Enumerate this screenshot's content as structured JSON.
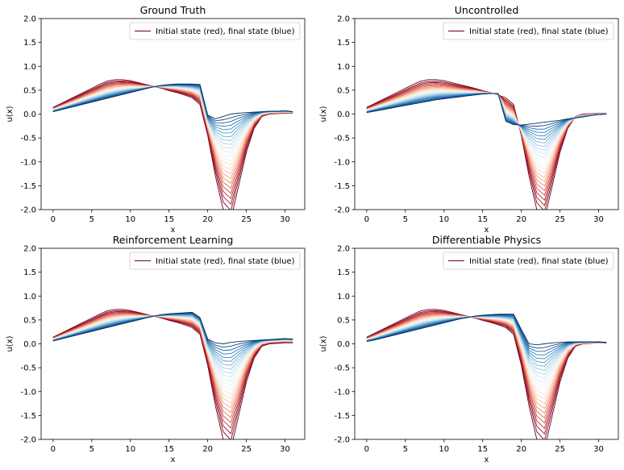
{
  "figure": {
    "colors": {
      "initial": "#67001f",
      "final": "#053061",
      "axes": "#000000",
      "legend_border": "#cccccc"
    }
  },
  "chart_data": [
    {
      "type": "line",
      "title": "Ground Truth",
      "xlabel": "x",
      "ylabel": "u(x)",
      "xlim": [
        -1.55,
        32.55
      ],
      "ylim": [
        -2.0,
        2.0
      ],
      "xticks": [
        0,
        5,
        10,
        15,
        20,
        25,
        30
      ],
      "yticks": [
        -2.0,
        -1.5,
        -1.0,
        -0.5,
        0.0,
        0.5,
        1.0,
        1.5,
        2.0
      ],
      "legend": {
        "label": "Initial state (red), final state (blue)",
        "loc": "upper right"
      },
      "grid": false,
      "num_states": 24,
      "colormap": "RdBu",
      "x": [
        0,
        1,
        2,
        3,
        4,
        5,
        6,
        7,
        8,
        9,
        10,
        11,
        12,
        13,
        14,
        15,
        16,
        17,
        18,
        19,
        20,
        21,
        22,
        23,
        24,
        25,
        26,
        27,
        28,
        29,
        30,
        31
      ],
      "series": [
        {
          "state": "initial",
          "values": [
            0.14,
            0.22,
            0.3,
            0.38,
            0.46,
            0.54,
            0.62,
            0.69,
            0.72,
            0.72,
            0.7,
            0.66,
            0.62,
            0.58,
            0.54,
            0.49,
            0.45,
            0.4,
            0.34,
            0.2,
            -0.45,
            -1.3,
            -2.0,
            -2.2,
            -1.5,
            -0.8,
            -0.3,
            -0.05,
            0.0,
            0.01,
            0.02,
            0.02
          ]
        },
        {
          "state": "final",
          "values": [
            0.05,
            0.09,
            0.13,
            0.17,
            0.21,
            0.25,
            0.29,
            0.33,
            0.37,
            0.41,
            0.45,
            0.49,
            0.53,
            0.57,
            0.6,
            0.62,
            0.63,
            0.63,
            0.63,
            0.62,
            -0.02,
            -0.1,
            -0.05,
            0.0,
            0.02,
            0.03,
            0.04,
            0.05,
            0.06,
            0.06,
            0.07,
            0.05
          ]
        }
      ]
    },
    {
      "type": "line",
      "title": "Uncontrolled",
      "xlabel": "x",
      "ylabel": "u(x)",
      "xlim": [
        -1.55,
        32.55
      ],
      "ylim": [
        -2.0,
        2.0
      ],
      "xticks": [
        0,
        5,
        10,
        15,
        20,
        25,
        30
      ],
      "yticks": [
        -2.0,
        -1.5,
        -1.0,
        -0.5,
        0.0,
        0.5,
        1.0,
        1.5,
        2.0
      ],
      "legend": {
        "label": "Initial state (red), final state (blue)",
        "loc": "upper right"
      },
      "grid": false,
      "num_states": 24,
      "colormap": "RdBu",
      "x": [
        0,
        1,
        2,
        3,
        4,
        5,
        6,
        7,
        8,
        9,
        10,
        11,
        12,
        13,
        14,
        15,
        16,
        17,
        18,
        19,
        20,
        21,
        22,
        23,
        24,
        25,
        26,
        27,
        28,
        29,
        30,
        31
      ],
      "series": [
        {
          "state": "initial",
          "values": [
            0.14,
            0.22,
            0.3,
            0.38,
            0.46,
            0.54,
            0.62,
            0.69,
            0.72,
            0.72,
            0.7,
            0.66,
            0.62,
            0.58,
            0.54,
            0.49,
            0.45,
            0.4,
            0.34,
            0.2,
            -0.45,
            -1.3,
            -2.0,
            -2.2,
            -1.5,
            -0.8,
            -0.3,
            -0.05,
            0.0,
            0.01,
            0.02,
            0.02
          ]
        },
        {
          "state": "final",
          "values": [
            0.03,
            0.06,
            0.09,
            0.12,
            0.15,
            0.18,
            0.21,
            0.24,
            0.27,
            0.3,
            0.32,
            0.34,
            0.36,
            0.38,
            0.4,
            0.42,
            0.43,
            0.43,
            -0.15,
            -0.22,
            -0.23,
            -0.21,
            -0.19,
            -0.17,
            -0.15,
            -0.13,
            -0.1,
            -0.08,
            -0.06,
            -0.03,
            -0.01,
            0.0
          ]
        }
      ]
    },
    {
      "type": "line",
      "title": "Reinforcement Learning",
      "xlabel": "x",
      "ylabel": "u(x)",
      "xlim": [
        -1.55,
        32.55
      ],
      "ylim": [
        -2.0,
        2.0
      ],
      "xticks": [
        0,
        5,
        10,
        15,
        20,
        25,
        30
      ],
      "yticks": [
        -2.0,
        -1.5,
        -1.0,
        -0.5,
        0.0,
        0.5,
        1.0,
        1.5,
        2.0
      ],
      "legend": {
        "label": "Initial state (red), final state (blue)",
        "loc": "upper right"
      },
      "grid": false,
      "num_states": 24,
      "colormap": "RdBu",
      "x": [
        0,
        1,
        2,
        3,
        4,
        5,
        6,
        7,
        8,
        9,
        10,
        11,
        12,
        13,
        14,
        15,
        16,
        17,
        18,
        19,
        20,
        21,
        22,
        23,
        24,
        25,
        26,
        27,
        28,
        29,
        30,
        31
      ],
      "series": [
        {
          "state": "initial",
          "values": [
            0.14,
            0.22,
            0.3,
            0.38,
            0.46,
            0.54,
            0.62,
            0.69,
            0.72,
            0.72,
            0.7,
            0.66,
            0.62,
            0.58,
            0.54,
            0.49,
            0.45,
            0.4,
            0.34,
            0.2,
            -0.45,
            -1.3,
            -2.0,
            -2.2,
            -1.5,
            -0.8,
            -0.3,
            -0.05,
            0.0,
            0.01,
            0.02,
            0.02
          ]
        },
        {
          "state": "final",
          "values": [
            0.06,
            0.1,
            0.14,
            0.18,
            0.22,
            0.26,
            0.3,
            0.34,
            0.38,
            0.42,
            0.46,
            0.5,
            0.54,
            0.58,
            0.61,
            0.63,
            0.64,
            0.65,
            0.66,
            0.55,
            0.1,
            0.02,
            0.0,
            0.03,
            0.05,
            0.06,
            0.07,
            0.08,
            0.09,
            0.1,
            0.11,
            0.1
          ]
        }
      ]
    },
    {
      "type": "line",
      "title": "Differentiable Physics",
      "xlabel": "x",
      "ylabel": "u(x)",
      "xlim": [
        -1.55,
        32.55
      ],
      "ylim": [
        -2.0,
        2.0
      ],
      "xticks": [
        0,
        5,
        10,
        15,
        20,
        25,
        30
      ],
      "yticks": [
        -2.0,
        -1.5,
        -1.0,
        -0.5,
        0.0,
        0.5,
        1.0,
        1.5,
        2.0
      ],
      "legend": {
        "label": "Initial state (red), final state (blue)",
        "loc": "upper right"
      },
      "grid": false,
      "num_states": 24,
      "colormap": "RdBu",
      "x": [
        0,
        1,
        2,
        3,
        4,
        5,
        6,
        7,
        8,
        9,
        10,
        11,
        12,
        13,
        14,
        15,
        16,
        17,
        18,
        19,
        20,
        21,
        22,
        23,
        24,
        25,
        26,
        27,
        28,
        29,
        30,
        31
      ],
      "series": [
        {
          "state": "initial",
          "values": [
            0.14,
            0.22,
            0.3,
            0.38,
            0.46,
            0.54,
            0.62,
            0.69,
            0.72,
            0.72,
            0.7,
            0.66,
            0.62,
            0.58,
            0.54,
            0.49,
            0.45,
            0.4,
            0.34,
            0.2,
            -0.45,
            -1.3,
            -2.0,
            -2.2,
            -1.5,
            -0.8,
            -0.3,
            -0.05,
            0.0,
            0.01,
            0.02,
            0.02
          ]
        },
        {
          "state": "final",
          "values": [
            0.05,
            0.08,
            0.12,
            0.16,
            0.2,
            0.24,
            0.28,
            0.32,
            0.36,
            0.4,
            0.44,
            0.48,
            0.52,
            0.55,
            0.58,
            0.6,
            0.61,
            0.62,
            0.62,
            0.62,
            0.3,
            0.0,
            -0.02,
            0.0,
            0.02,
            0.03,
            0.04,
            0.04,
            0.04,
            0.04,
            0.04,
            0.03
          ]
        }
      ]
    }
  ]
}
